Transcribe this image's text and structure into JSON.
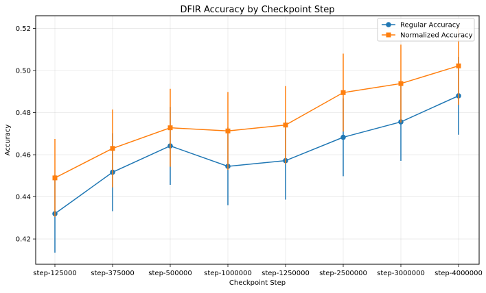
{
  "chart_data": {
    "type": "line",
    "title": "DFIR Accuracy by Checkpoint Step",
    "xlabel": "Checkpoint Step",
    "ylabel": "Accuracy",
    "categories": [
      "step-125000",
      "step-375000",
      "step-500000",
      "step-1000000",
      "step-1250000",
      "step-2500000",
      "step-3000000",
      "step-4000000"
    ],
    "ylim": [
      0.408,
      0.526
    ],
    "yticks": [
      0.42,
      0.44,
      0.46,
      0.48,
      0.5,
      0.52
    ],
    "ytick_labels": [
      "0.42",
      "0.44",
      "0.46",
      "0.48",
      "0.50",
      "0.52"
    ],
    "grid": true,
    "legend_position": "top-right",
    "series": [
      {
        "name": "Regular Accuracy",
        "color": "#1f77b4",
        "marker": "circle",
        "values": [
          0.432,
          0.4517,
          0.4642,
          0.4545,
          0.4572,
          0.4683,
          0.4756,
          0.488
        ],
        "error": [
          0.0185,
          0.0185,
          0.0185,
          0.0185,
          0.0185,
          0.0185,
          0.0185,
          0.0185
        ]
      },
      {
        "name": "Normalized Accuracy",
        "color": "#ff7f0e",
        "marker": "square",
        "values": [
          0.449,
          0.463,
          0.4728,
          0.4713,
          0.4741,
          0.4895,
          0.4938,
          0.5022
        ],
        "error": [
          0.0185,
          0.0185,
          0.0185,
          0.0185,
          0.0185,
          0.0185,
          0.0185,
          0.0185
        ]
      }
    ]
  }
}
